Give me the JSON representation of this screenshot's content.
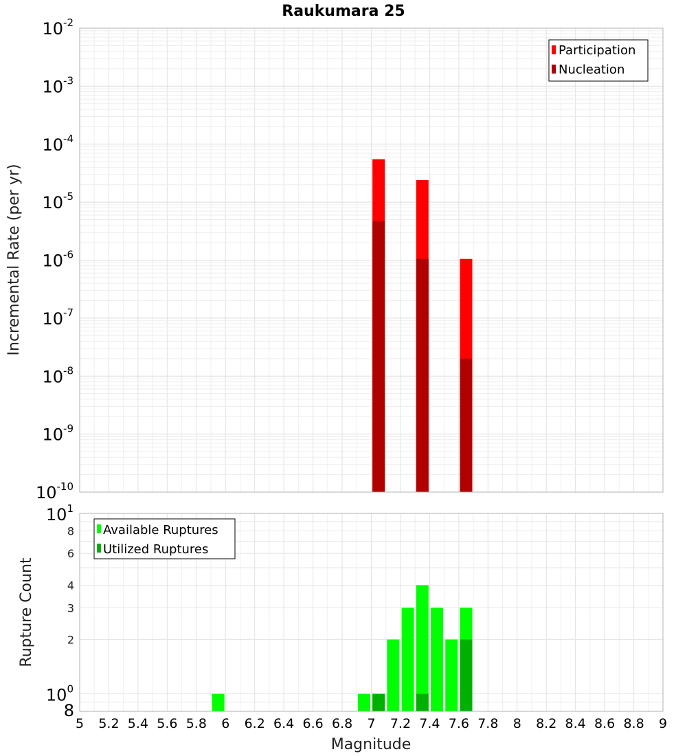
{
  "chart_data": [
    {
      "type": "bar",
      "title": "Raukumara 25",
      "ylabel": "Incremental Rate (per yr)",
      "yscale": "log",
      "ylim": [
        1e-10,
        0.01
      ],
      "xlim": [
        5,
        9
      ],
      "grid": true,
      "legend_position": "top-right",
      "y_tick_labels": [
        {
          "base": "10",
          "exp": "-10"
        },
        {
          "base": "10",
          "exp": "-9"
        },
        {
          "base": "10",
          "exp": "-8"
        },
        {
          "base": "10",
          "exp": "-7"
        },
        {
          "base": "10",
          "exp": "-6"
        },
        {
          "base": "10",
          "exp": "-5"
        },
        {
          "base": "10",
          "exp": "-4"
        },
        {
          "base": "10",
          "exp": "-3"
        },
        {
          "base": "10",
          "exp": "-2"
        }
      ],
      "series": [
        {
          "name": "Participation",
          "color": "#ff0000",
          "points": [
            {
              "x": 7.05,
              "y": 5.5e-05
            },
            {
              "x": 7.35,
              "y": 2.4e-05
            },
            {
              "x": 7.65,
              "y": 1.05e-06
            }
          ]
        },
        {
          "name": "Nucleation",
          "color": "#b00000",
          "points": [
            {
              "x": 7.05,
              "y": 4.7e-06
            },
            {
              "x": 7.35,
              "y": 1.05e-06
            },
            {
              "x": 7.65,
              "y": 2e-08
            }
          ]
        }
      ]
    },
    {
      "type": "bar",
      "ylabel": "Rupture Count",
      "xlabel": "Magnitude",
      "yscale": "log",
      "ylim": [
        0.8,
        10
      ],
      "xlim": [
        5,
        9
      ],
      "grid": true,
      "legend_position": "top-left",
      "x_ticks": [
        "5",
        "5.2",
        "5.4",
        "5.6",
        "5.8",
        "6",
        "6.2",
        "6.4",
        "6.6",
        "6.8",
        "7",
        "7.2",
        "7.4",
        "7.6",
        "7.8",
        "8",
        "8.2",
        "8.4",
        "8.6",
        "8.8",
        "9"
      ],
      "y_tick_labels": [
        {
          "v": 2,
          "label": "2"
        },
        {
          "v": 3,
          "label": "3"
        },
        {
          "v": 4,
          "label": "4"
        },
        {
          "v": 6,
          "label": "6"
        },
        {
          "v": 8,
          "label": "8"
        }
      ],
      "y_major_labels": [
        {
          "v": 1,
          "base": "10",
          "exp": "0"
        },
        {
          "v": 10,
          "base": "10",
          "exp": "1"
        },
        {
          "v": 0.8,
          "base": "8",
          "exp": ""
        }
      ],
      "series": [
        {
          "name": "Available Ruptures",
          "color": "#00ff00",
          "points": [
            {
              "x": 5.95,
              "y": 1
            },
            {
              "x": 6.95,
              "y": 1
            },
            {
              "x": 7.05,
              "y": 1
            },
            {
              "x": 7.15,
              "y": 2
            },
            {
              "x": 7.25,
              "y": 3
            },
            {
              "x": 7.35,
              "y": 4
            },
            {
              "x": 7.45,
              "y": 3
            },
            {
              "x": 7.55,
              "y": 2
            },
            {
              "x": 7.65,
              "y": 3
            }
          ]
        },
        {
          "name": "Utilized Ruptures",
          "color": "#00b000",
          "points": [
            {
              "x": 7.05,
              "y": 1
            },
            {
              "x": 7.35,
              "y": 1
            },
            {
              "x": 7.65,
              "y": 2
            }
          ]
        }
      ]
    }
  ]
}
